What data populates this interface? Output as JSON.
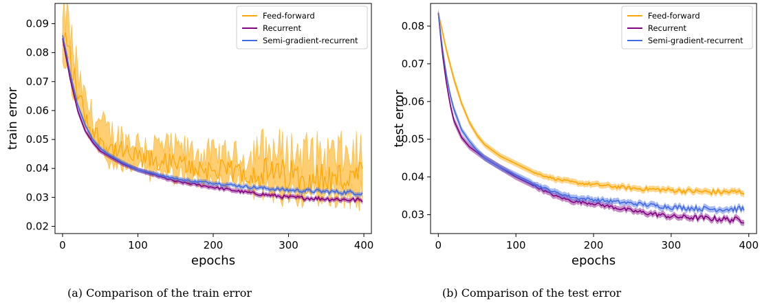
{
  "chart_data": [
    {
      "type": "line",
      "caption": "(a) Comparison of the train error",
      "xlabel": "epochs",
      "ylabel": "train error",
      "xlim": [
        -10,
        410
      ],
      "ylim": [
        0.0175,
        0.097
      ],
      "xticks": [
        0,
        100,
        200,
        300,
        400
      ],
      "yticks": [
        0.02,
        0.03,
        0.04,
        0.05,
        0.06,
        0.07,
        0.08,
        0.09
      ],
      "ytick_labels": [
        "0.02",
        "0.03",
        "0.04",
        "0.05",
        "0.06",
        "0.07",
        "0.08",
        "0.09"
      ],
      "legend_position": "top-right",
      "grid": false,
      "series": [
        {
          "name": "Feed-forward",
          "color": "#FFA500",
          "band": true,
          "noisy": true,
          "x": [
            0,
            5,
            10,
            15,
            20,
            30,
            40,
            50,
            60,
            80,
            100,
            125,
            150,
            175,
            200,
            250,
            300,
            350,
            398
          ],
          "y": [
            0.08,
            0.085,
            0.078,
            0.07,
            0.066,
            0.058,
            0.052,
            0.05,
            0.047,
            0.045,
            0.043,
            0.042,
            0.041,
            0.04,
            0.039,
            0.038,
            0.037,
            0.036,
            0.036
          ]
        },
        {
          "name": "Recurrent",
          "color": "#800080",
          "band": true,
          "noisy": false,
          "x": [
            0,
            5,
            10,
            20,
            30,
            40,
            50,
            60,
            80,
            100,
            125,
            150,
            175,
            200,
            250,
            300,
            350,
            398
          ],
          "y": [
            0.085,
            0.078,
            0.071,
            0.06,
            0.053,
            0.049,
            0.046,
            0.0445,
            0.0415,
            0.0395,
            0.0375,
            0.0355,
            0.0345,
            0.0335,
            0.0315,
            0.03,
            0.0295,
            0.029
          ]
        },
        {
          "name": "Semi-gradient-recurrent",
          "color": "#4169E1",
          "band": true,
          "noisy": false,
          "x": [
            0,
            5,
            10,
            20,
            30,
            40,
            50,
            60,
            80,
            100,
            125,
            150,
            175,
            200,
            250,
            300,
            350,
            398
          ],
          "y": [
            0.086,
            0.08,
            0.073,
            0.062,
            0.055,
            0.05,
            0.047,
            0.045,
            0.042,
            0.0395,
            0.038,
            0.0365,
            0.0355,
            0.035,
            0.0335,
            0.0325,
            0.032,
            0.0315
          ]
        }
      ]
    },
    {
      "type": "line",
      "caption": "(b) Comparison of the test error",
      "xlabel": "epochs",
      "ylabel": "test error",
      "xlim": [
        -10,
        410
      ],
      "ylim": [
        0.025,
        0.086
      ],
      "xticks": [
        0,
        100,
        200,
        300,
        400
      ],
      "yticks": [
        0.03,
        0.04,
        0.05,
        0.06,
        0.07,
        0.08
      ],
      "ytick_labels": [
        "0.03",
        "0.04",
        "0.05",
        "0.06",
        "0.07",
        "0.08"
      ],
      "legend_position": "top-right",
      "grid": false,
      "series": [
        {
          "name": "Feed-forward",
          "color": "#FFA500",
          "band": true,
          "noisy": false,
          "x": [
            0,
            10,
            20,
            30,
            40,
            50,
            60,
            80,
            100,
            125,
            150,
            175,
            200,
            250,
            300,
            350,
            395
          ],
          "y": [
            0.0835,
            0.074,
            0.066,
            0.0595,
            0.0545,
            0.051,
            0.0485,
            0.0455,
            0.0435,
            0.041,
            0.0395,
            0.0385,
            0.038,
            0.037,
            0.0365,
            0.036,
            0.036
          ]
        },
        {
          "name": "Recurrent",
          "color": "#800080",
          "band": true,
          "noisy": false,
          "x": [
            0,
            5,
            10,
            15,
            20,
            30,
            40,
            50,
            60,
            80,
            100,
            125,
            150,
            175,
            200,
            225,
            250,
            300,
            350,
            395
          ],
          "y": [
            0.0835,
            0.073,
            0.0655,
            0.0595,
            0.055,
            0.0505,
            0.048,
            0.0465,
            0.045,
            0.0425,
            0.04,
            0.0375,
            0.035,
            0.0335,
            0.033,
            0.032,
            0.031,
            0.0295,
            0.029,
            0.0285
          ]
        },
        {
          "name": "Semi-gradient-recurrent",
          "color": "#4169E1",
          "band": true,
          "noisy": false,
          "x": [
            0,
            5,
            10,
            15,
            20,
            30,
            40,
            50,
            60,
            80,
            100,
            125,
            150,
            175,
            200,
            225,
            250,
            300,
            350,
            395
          ],
          "y": [
            0.0835,
            0.0745,
            0.0675,
            0.062,
            0.058,
            0.0525,
            0.0495,
            0.047,
            0.045,
            0.0425,
            0.0405,
            0.038,
            0.036,
            0.0345,
            0.034,
            0.0335,
            0.033,
            0.032,
            0.0315,
            0.0315
          ]
        }
      ]
    }
  ]
}
